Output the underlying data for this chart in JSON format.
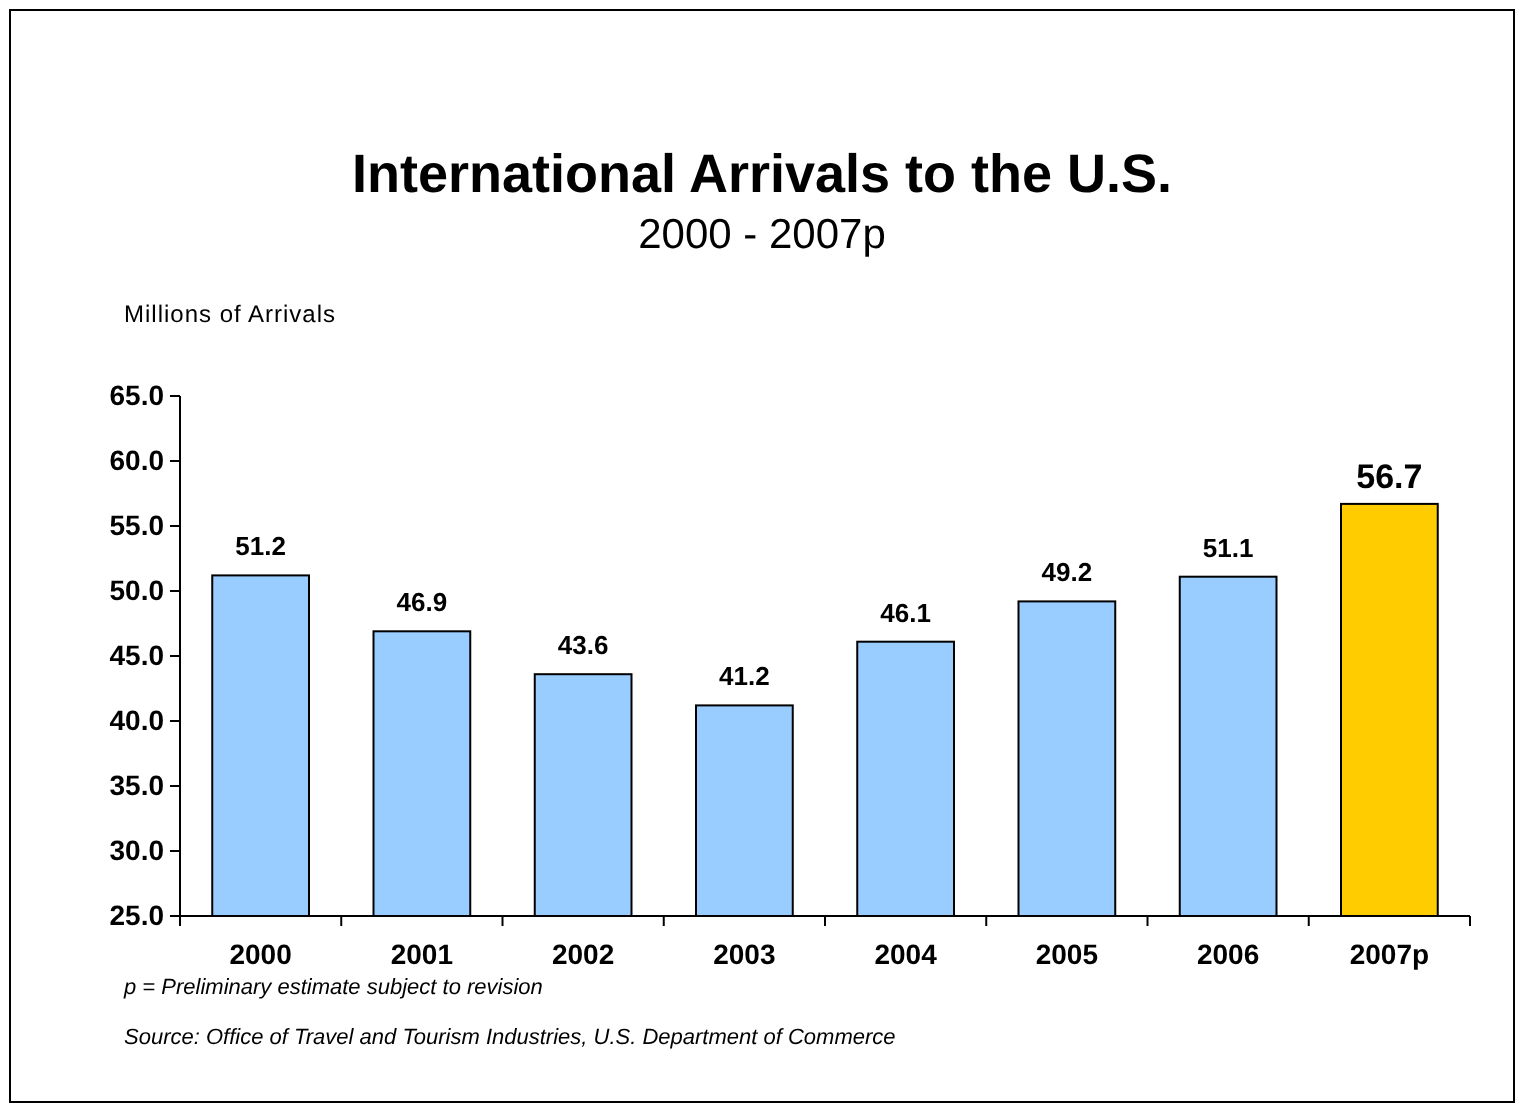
{
  "chart_data": {
    "type": "bar",
    "title": "International Arrivals to the U.S.",
    "subtitle": "2000 - 2007p",
    "ylabel": "Millions of Arrivals",
    "categories": [
      "2000",
      "2001",
      "2002",
      "2003",
      "2004",
      "2005",
      "2006",
      "2007p"
    ],
    "values": [
      51.2,
      46.9,
      43.6,
      41.2,
      46.1,
      49.2,
      51.1,
      56.7
    ],
    "colors": [
      "#99ccff",
      "#99ccff",
      "#99ccff",
      "#99ccff",
      "#99ccff",
      "#99ccff",
      "#99ccff",
      "#ffcc00"
    ],
    "ylim": [
      25,
      65
    ],
    "yticks": [
      {
        "value": 25,
        "label": "25.0"
      },
      {
        "value": 30,
        "label": "30.0"
      },
      {
        "value": 35,
        "label": "35.0"
      },
      {
        "value": 40,
        "label": "40.0"
      },
      {
        "value": 45,
        "label": "45.0"
      },
      {
        "value": 50,
        "label": "50.0"
      },
      {
        "value": 55,
        "label": "55.0"
      },
      {
        "value": 60,
        "label": "60.0"
      },
      {
        "value": 65,
        "label": "65.0"
      }
    ],
    "data_labels": true,
    "grid": false,
    "annotations": [
      "p = Preliminary estimate subject to revision",
      "Source: Office of Travel and Tourism Industries, U.S. Department of Commerce"
    ]
  }
}
